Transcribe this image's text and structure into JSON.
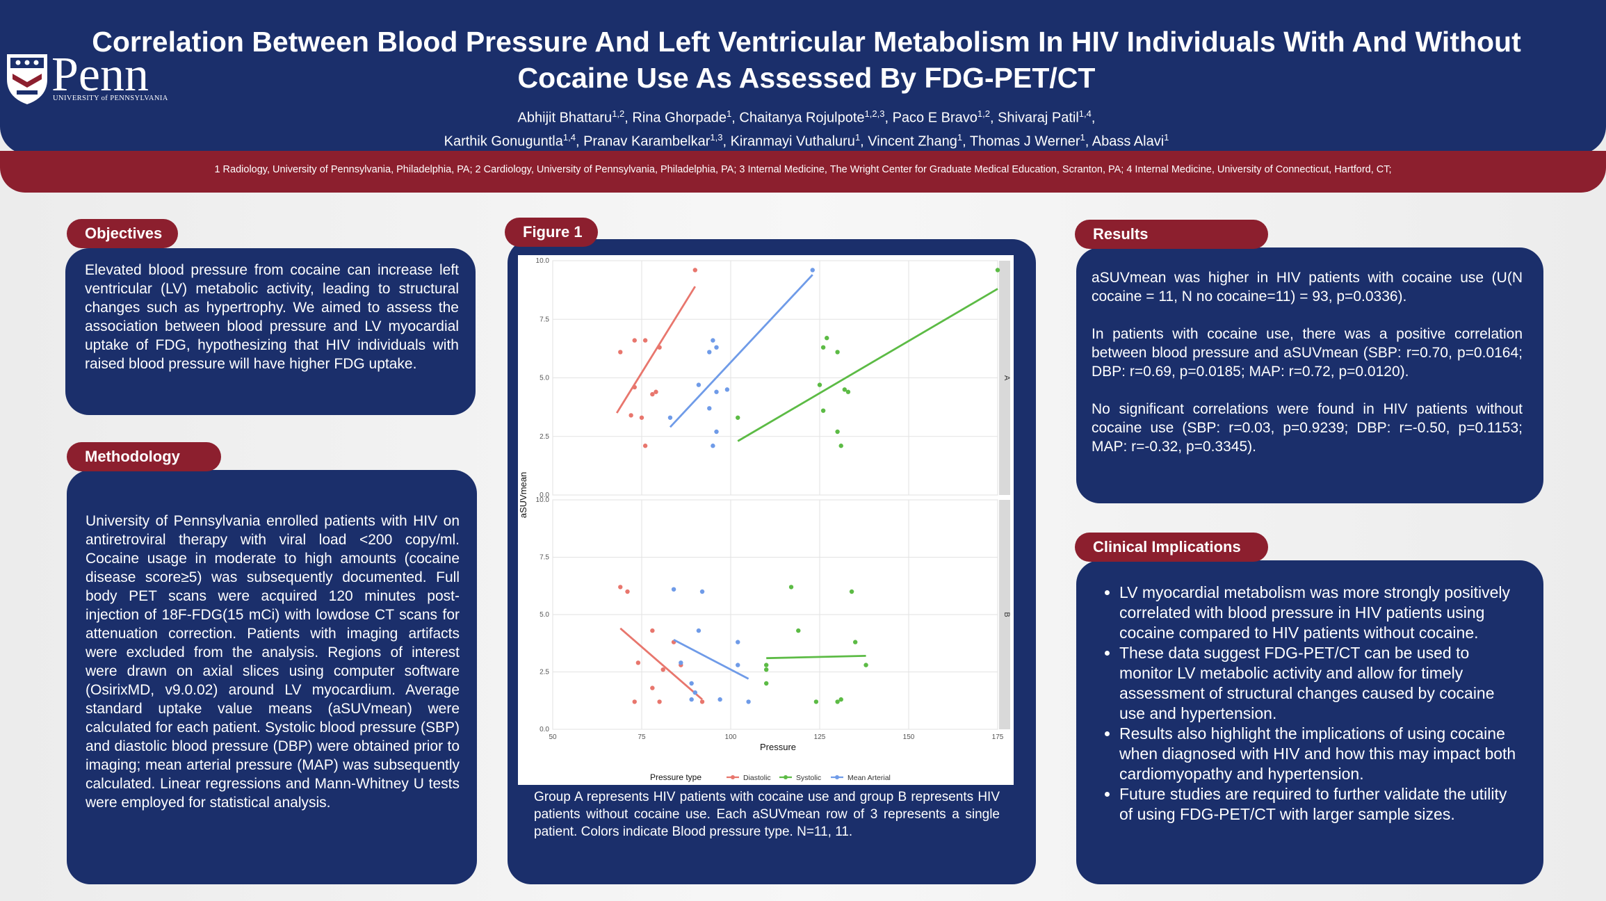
{
  "header": {
    "logo_text": "Penn",
    "logo_subtitle": "UNIVERSITY of PENNSYLVANIA",
    "title": "Correlation Between Blood Pressure And Left Ventricular Metabolism In HIV Individuals With And Without Cocaine Use As Assessed By FDG-PET/CT",
    "authors_line1": [
      {
        "name": "Abhijit Bhattaru",
        "sup": "1,2",
        "sep": ", "
      },
      {
        "name": "Rina Ghorpade",
        "sup": "1",
        "sep": ", "
      },
      {
        "name": "Chaitanya Rojulpote",
        "sup": "1,2,3",
        "sep": ", "
      },
      {
        "name": "Paco E Bravo",
        "sup": "1,2",
        "sep": ", "
      },
      {
        "name": "Shivaraj Patil",
        "sup": "1,4",
        "sep": ","
      }
    ],
    "authors_line2": [
      {
        "name": "Karthik Gonuguntla",
        "sup": "1,4",
        "sep": ", "
      },
      {
        "name": "Pranav Karambelkar",
        "sup": "1,3",
        "sep": ", "
      },
      {
        "name": "Kiranmayi Vuthaluru",
        "sup": "1",
        "sep": ", "
      },
      {
        "name": "Vincent Zhang",
        "sup": "1",
        "sep": ", "
      },
      {
        "name": "Thomas J Werner",
        "sup": "1",
        "sep": ", "
      },
      {
        "name": "Abass Alavi",
        "sup": "1",
        "sep": ""
      }
    ],
    "affiliations": "1 Radiology, University of Pennsylvania, Philadelphia, PA; 2 Cardiology, University of Pennsylvania, Philadelphia, PA;  3 Internal Medicine, The Wright Center for Graduate Medical Education, Scranton, PA;  4 Internal Medicine, University of Connecticut, Hartford, CT;"
  },
  "objectives": {
    "heading": "Objectives",
    "text": "Elevated blood pressure from cocaine can increase left ventricular (LV) metabolic activity, leading to structural changes such as hypertrophy. We aimed to assess the association between blood pressure and LV myocardial uptake of FDG, hypothesizing that HIV individuals with raised blood pressure will have higher FDG uptake."
  },
  "methodology": {
    "heading": "Methodology",
    "text": "University of Pennsylvania enrolled patients with HIV on antiretroviral therapy with viral load <200 copy/ml. Cocaine usage in moderate to high amounts (cocaine disease score≥5) was subsequently documented. Full body PET scans were acquired 120 minutes post-injection of 18F-FDG(15 mCi) with lowdose CT scans for attenuation correction. Patients with imaging artifacts were excluded from the analysis. Regions of interest were drawn on axial slices using computer software (OsirixMD, v9.0.02) around LV myocardium. Average standard uptake value means (aSUVmean) were calculated for each patient. Systolic blood pressure (SBP) and diastolic blood pressure (DBP) were obtained prior to imaging; mean arterial pressure (MAP) was subsequently calculated. Linear regressions and Mann-Whitney U tests were employed for statistical analysis."
  },
  "figure": {
    "heading": "Figure 1",
    "caption": "Group A represents HIV patients with cocaine use and group B represents HIV patients without cocaine use. Each aSUVmean row of 3 represents a single patient. Colors indicate Blood pressure type. N=11, 11."
  },
  "results": {
    "heading": "Results",
    "p1": "aSUVmean was higher in HIV patients with cocaine use (U(N cocaine = 11, N no cocaine=11) = 93, p=0.0336).",
    "p2": "In patients with cocaine use, there was a positive correlation between blood pressure and aSUVmean (SBP: r=0.70, p=0.0164; DBP: r=0.69, p=0.0185; MAP: r=0.72, p=0.0120).",
    "p3": "No significant correlations were found in HIV patients without cocaine use (SBP: r=0.03, p=0.9239; DBP: r=-0.50, p=0.1153; MAP: r=-0.32, p=0.3345)."
  },
  "implications": {
    "heading": "Clinical Implications",
    "bullets": [
      "LV myocardial metabolism was more strongly positively correlated with blood pressure in HIV patients using cocaine compared to HIV patients without cocaine.",
      "These data suggest FDG-PET/CT can be used to monitor LV metabolic activity and allow for timely assessment of structural changes caused by cocaine use and hypertension.",
      "Results also highlight the implications of using cocaine when diagnosed with HIV and how this may impact both cardiomyopathy and hypertension.",
      "Future studies are required to further validate the utility of using FDG-PET/CT with larger sample sizes."
    ]
  },
  "chart_data": {
    "type": "scatter",
    "xlabel": "Pressure",
    "ylabel": "aSUVmean",
    "xlim": [
      50,
      175
    ],
    "ylim": [
      0,
      10
    ],
    "xticks": [
      "50",
      "75",
      "100",
      "125",
      "150",
      "175"
    ],
    "yticks": [
      "0.0",
      "2.5",
      "5.0",
      "7.5",
      "10.0"
    ],
    "legend_title": "Pressure type",
    "legend_position": "bottom",
    "colors": {
      "Diastolic": "#e8766d",
      "Systolic": "#5cbb45",
      "Mean Arterial": "#6f9be8"
    },
    "facets": [
      {
        "label": "A",
        "series": [
          {
            "name": "Diastolic",
            "x": [
              90,
              73,
              76,
              69,
              73,
              78,
              79,
              75,
              80,
              76,
              72
            ],
            "y": [
              9.6,
              6.6,
              6.6,
              6.1,
              4.6,
              4.3,
              4.4,
              3.3,
              6.3,
              2.1,
              3.4
            ],
            "fit": [
              [
                68,
                3.5
              ],
              [
                90,
                8.9
              ]
            ]
          },
          {
            "name": "Systolic",
            "x": [
              175,
              127,
              126,
              130,
              132,
              125,
              130,
              126,
              131,
              102,
              133
            ],
            "y": [
              9.6,
              6.7,
              6.3,
              6.1,
              4.5,
              4.7,
              2.7,
              3.6,
              2.1,
              3.3,
              4.4
            ],
            "fit": [
              [
                102,
                2.3
              ],
              [
                175,
                8.8
              ]
            ]
          },
          {
            "name": "Mean Arterial",
            "x": [
              123,
              95,
              96,
              94,
              96,
              99,
              91,
              83,
              94,
              96,
              95
            ],
            "y": [
              9.6,
              6.6,
              6.3,
              6.1,
              4.4,
              4.5,
              4.7,
              3.3,
              3.7,
              2.7,
              2.1
            ],
            "fit": [
              [
                83,
                2.9
              ],
              [
                123,
                9.4
              ]
            ]
          }
        ]
      },
      {
        "label": "B",
        "series": [
          {
            "name": "Diastolic",
            "x": [
              69,
              71,
              78,
              84,
              78,
              81,
              86,
              74,
              73,
              80,
              92
            ],
            "y": [
              6.2,
              6.0,
              4.3,
              3.8,
              1.8,
              2.6,
              2.8,
              2.9,
              1.2,
              1.2,
              1.2
            ],
            "fit": [
              [
                69,
                4.4
              ],
              [
                92,
                1.3
              ]
            ]
          },
          {
            "name": "Systolic",
            "x": [
              134,
              117,
              119,
              135,
              110,
              110,
              110,
              138,
              130,
              131,
              124
            ],
            "y": [
              6.0,
              6.2,
              4.3,
              3.8,
              2.8,
              2.6,
              2.0,
              2.8,
              1.2,
              1.3,
              1.2
            ],
            "fit": [
              [
                110,
                3.1
              ],
              [
                138,
                3.2
              ]
            ]
          },
          {
            "name": "Mean Arterial",
            "x": [
              84,
              92,
              91,
              102,
              86,
              102,
              89,
              89,
              97,
              105,
              90
            ],
            "y": [
              6.1,
              6.0,
              4.3,
              3.8,
              2.9,
              2.8,
              2.0,
              1.3,
              1.3,
              1.2,
              1.6
            ],
            "fit": [
              [
                84,
                3.9
              ],
              [
                105,
                2.2
              ]
            ]
          }
        ]
      }
    ]
  }
}
